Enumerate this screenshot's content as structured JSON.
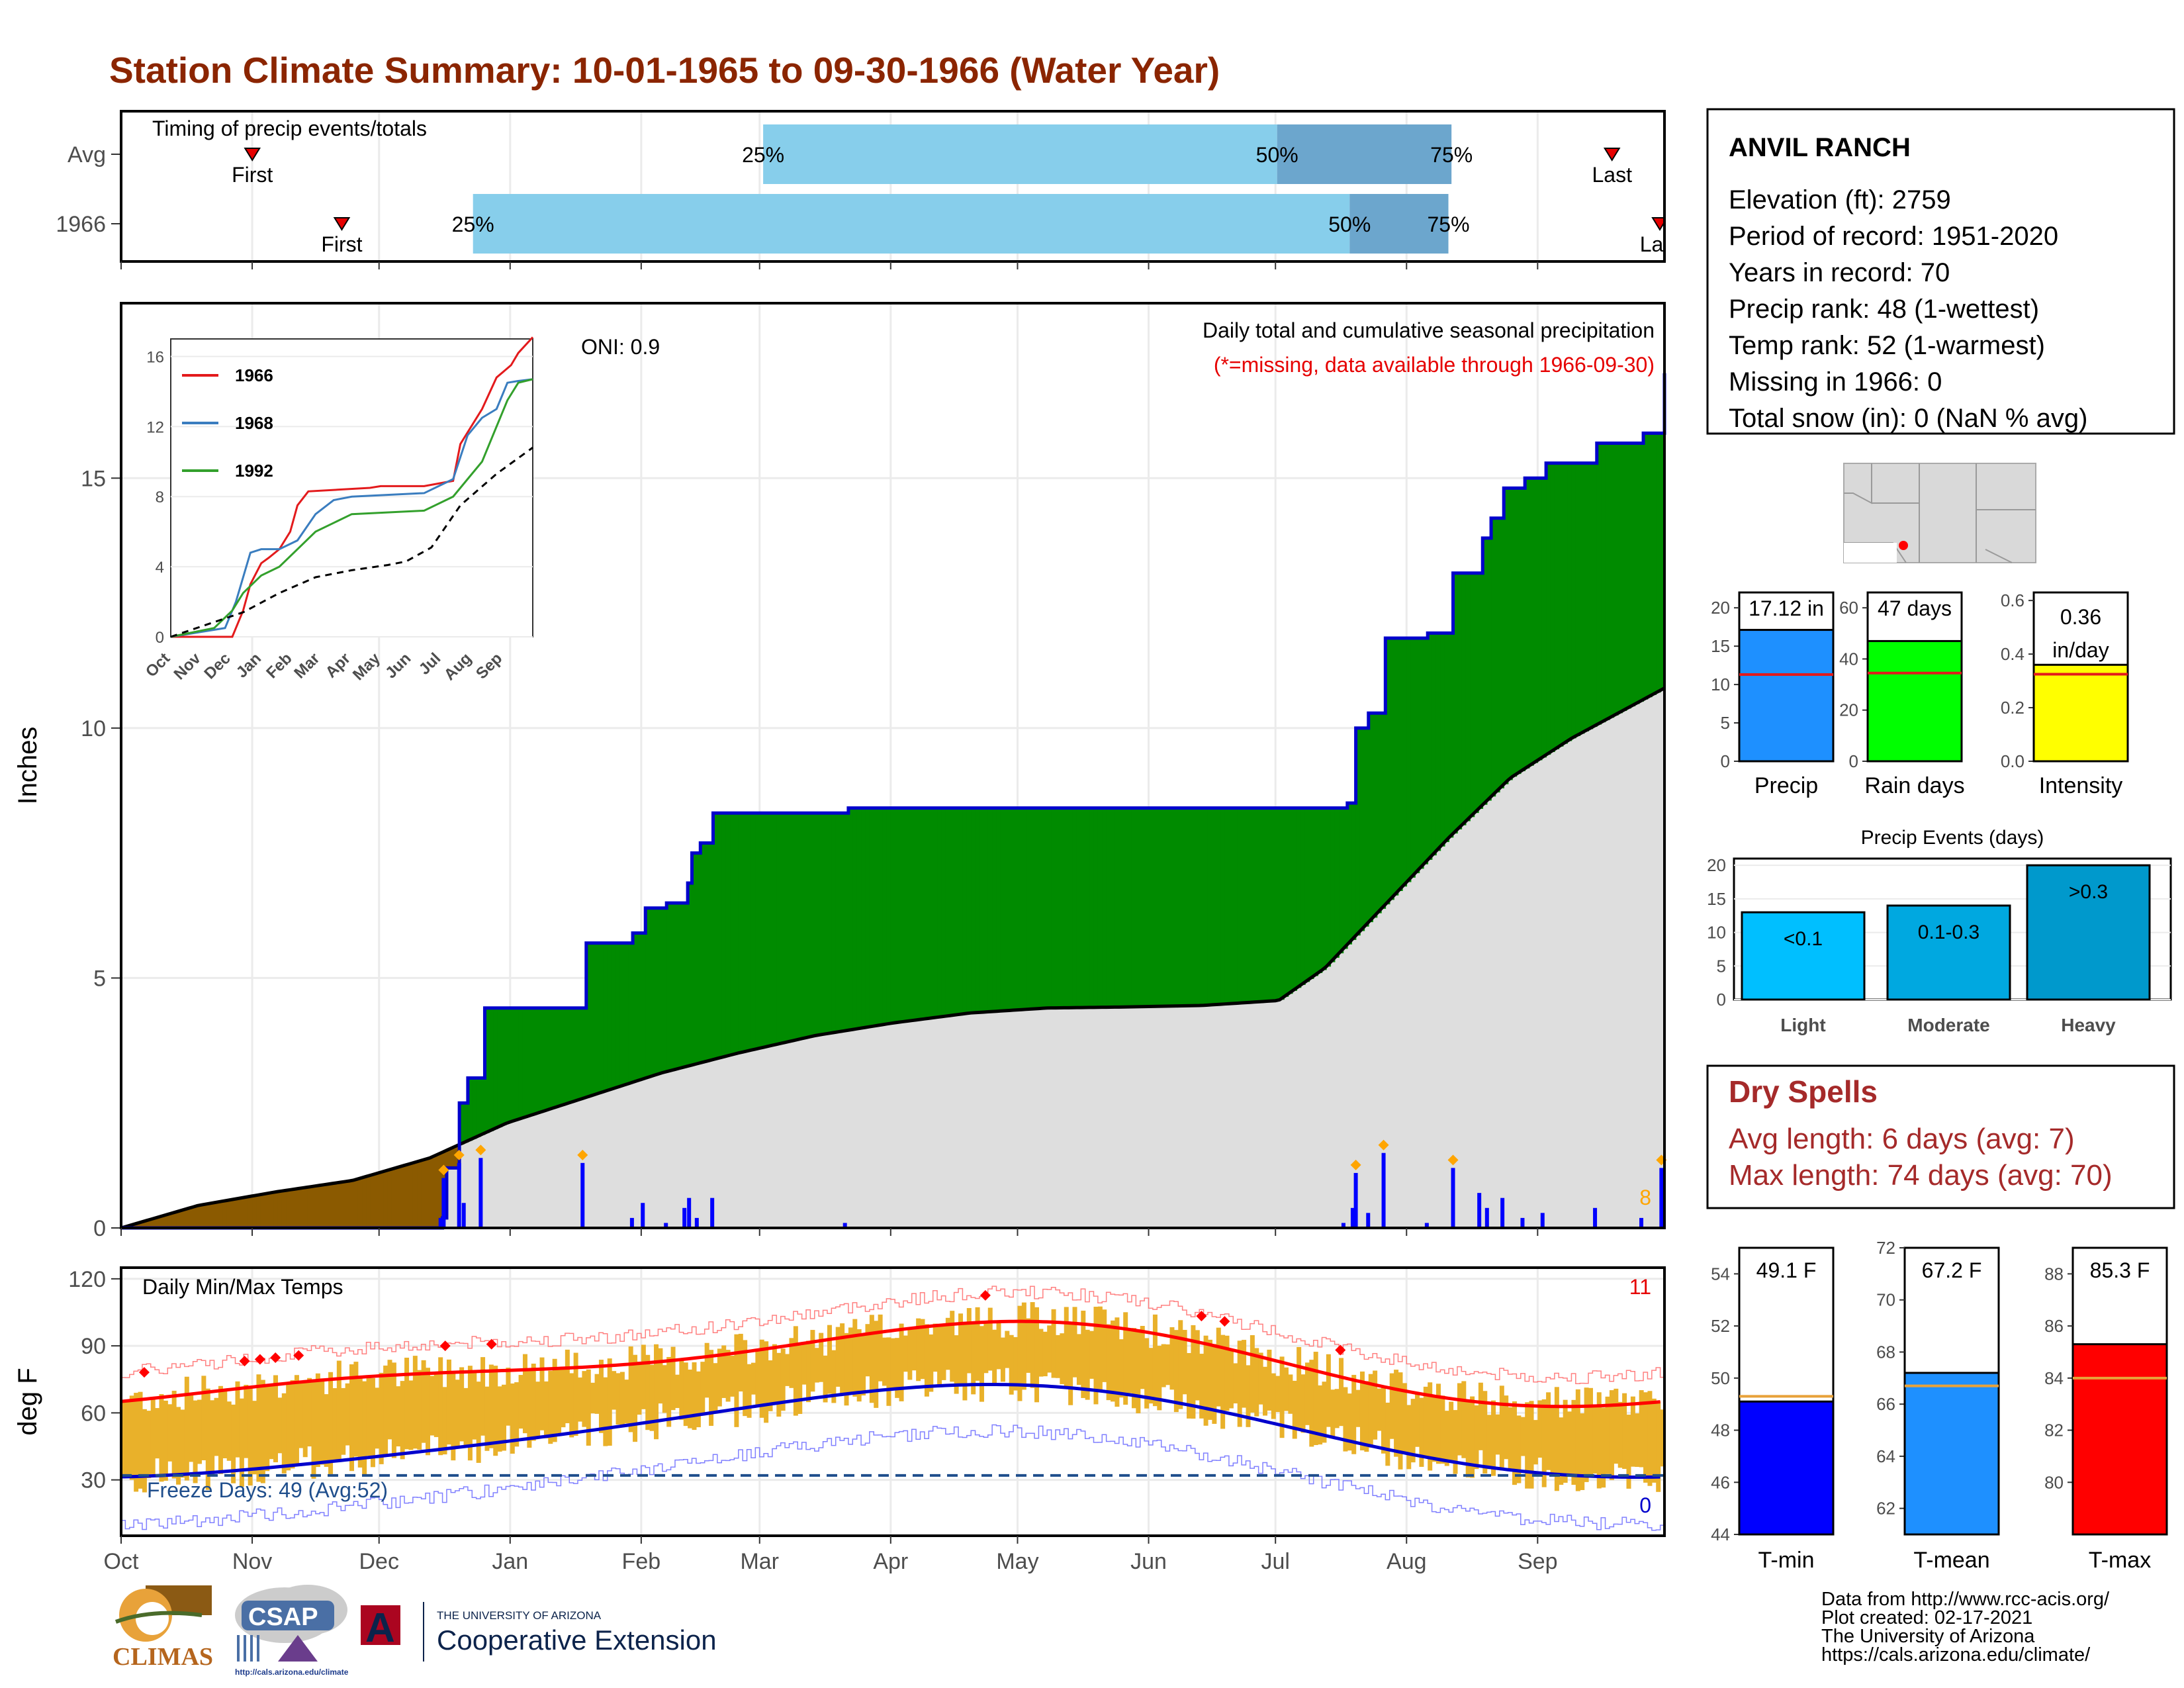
{
  "title": "Station Climate Summary: 10-01-1965 to 09-30-1966 (Water Year)",
  "station": {
    "name": "ANVIL RANCH",
    "lines": [
      "Elevation (ft): 2759",
      "Period of record: 1951-2020",
      "Years in record: 70",
      "Precip rank: 48 (1-wettest)",
      "Temp rank: 52 (1-warmest)",
      "Missing in 1966: 0",
      "Total snow (in): 0 (NaN % avg)"
    ]
  },
  "months": [
    "Oct",
    "Nov",
    "Dec",
    "Jan",
    "Feb",
    "Mar",
    "Apr",
    "May",
    "Jun",
    "Jul",
    "Aug",
    "Sep"
  ],
  "timing": {
    "title": "Timing of precip events/totals",
    "rows": [
      {
        "label": "Avg",
        "first_label": "First",
        "last_label": "Last",
        "first": 0.085,
        "p25": 0.416,
        "p50": 0.749,
        "p75": 0.862,
        "last": 0.966,
        "p25_label": "25%",
        "p50_label": "50%",
        "p75_label": "75%"
      },
      {
        "label": "1966",
        "first_label": "First",
        "last_label": "Last",
        "first": 0.143,
        "p25": 0.228,
        "p50": 0.796,
        "p75": 0.86,
        "last": 0.997,
        "p25_label": "25%",
        "p50_label": "50%",
        "p75_label": "75%"
      }
    ]
  },
  "precip_panel": {
    "ylabel": "Inches",
    "ylim": [
      0,
      18.5
    ],
    "yticks": [
      0,
      5,
      10,
      15
    ],
    "oni": "ONI: 0.9",
    "note": "Daily total and cumulative seasonal precipitation",
    "missing_note": "(*=missing, data available through 1966-09-30)",
    "extreme_count": "8",
    "inset": {
      "yticks": [
        0,
        4,
        8,
        12,
        16
      ],
      "xticks": [
        "Oct",
        "Nov",
        "Dec",
        "Jan",
        "Feb",
        "Mar",
        "Apr",
        "May",
        "Jun",
        "Jul",
        "Aug",
        "Sep"
      ],
      "legend": [
        "1966",
        "1968",
        "1992"
      ],
      "colors": [
        "#e31a1c",
        "#3a7dbf",
        "#33a02c"
      ]
    }
  },
  "temp_panel": {
    "ylabel": "deg F",
    "title": "Daily Min/Max Temps",
    "yticks": [
      30,
      60,
      90,
      120
    ],
    "freeze_label": "Freeze Days: 49 (Avg:52)",
    "hot_count": "11",
    "cold_count": "0"
  },
  "summary_bars": [
    {
      "label": "Precip",
      "value_label": "17.12 in",
      "value": 17.12,
      "avg": 11.3,
      "ymax": 22,
      "yticks": [
        0,
        5,
        10,
        15,
        20
      ],
      "color": "#1e90ff"
    },
    {
      "label": "Rain days",
      "value_label": "47 days",
      "value": 47,
      "avg": 34.5,
      "ymax": 66,
      "yticks": [
        0,
        20,
        40,
        60
      ],
      "color": "#00ff00"
    },
    {
      "label": "Intensity",
      "value_label": "0.36 in/day",
      "value": 0.36,
      "avg": 0.325,
      "ymax": 0.63,
      "yticks": [
        "0.0",
        "0.2",
        "0.4",
        "0.6"
      ],
      "color": "#ffff00"
    }
  ],
  "events": {
    "title": "Precip Events (days)",
    "yticks": [
      0,
      5,
      10,
      15,
      20
    ],
    "bars": [
      {
        "label": "Light",
        "inner": "<0.1",
        "value": 13,
        "color": "#00bfff"
      },
      {
        "label": "Moderate",
        "inner": "0.1-0.3",
        "value": 14,
        "color": "#00a8e0"
      },
      {
        "label": "Heavy",
        "inner": ">0.3",
        "value": 20,
        "color": "#0099cc"
      }
    ]
  },
  "dry_spells": {
    "title": "Dry Spells",
    "avg": "Avg length: 6 days (avg: 7)",
    "max": "Max length: 74 days (avg: 70)"
  },
  "temp_bars": [
    {
      "label": "T-min",
      "value_label": "49.1 F",
      "value": 49.1,
      "avg": 49.3,
      "ymin": 44,
      "ymax": 55,
      "yticks": [
        44,
        46,
        48,
        50,
        52,
        54
      ],
      "color": "#0000ff"
    },
    {
      "label": "T-mean",
      "value_label": "67.2 F",
      "value": 67.2,
      "avg": 66.7,
      "ymin": 61,
      "ymax": 72,
      "yticks": [
        62,
        64,
        66,
        68,
        70,
        72
      ],
      "color": "#1e90ff"
    },
    {
      "label": "T-max",
      "value_label": "85.3 F",
      "value": 85.3,
      "avg": 84,
      "ymin": 78,
      "ymax": 89,
      "yticks": [
        80,
        82,
        84,
        86,
        88
      ],
      "color": "#ff0000"
    }
  ],
  "credits": [
    "Data from http://www.rcc-acis.org/",
    "Plot created: 02-17-2021",
    "The University of Arizona",
    "https://cals.arizona.edu/climate/"
  ],
  "logos": {
    "climas": "CLIMAS",
    "csap": "CSAP",
    "csap_url": "http://cals.arizona.edu/climate",
    "ua_top": "THE UNIVERSITY OF ARIZONA",
    "ua_name": "Cooperative Extension",
    "ua_mark": "A"
  },
  "chart_data": [
    {
      "type": "area",
      "title": "Daily total and cumulative seasonal precipitation",
      "ylabel": "Inches",
      "ylim": [
        0,
        18.5
      ],
      "series": [
        {
          "name": "1966",
          "x_fraction": [
            0,
            0.148,
            0.207,
            0.209,
            0.219,
            0.222,
            0.233,
            0.298,
            0.299,
            0.331,
            0.338,
            0.353,
            0.365,
            0.368,
            0.373,
            0.383,
            0.459,
            0.469,
            0.534,
            0.62,
            0.792,
            0.798,
            0.8,
            0.808,
            0.818,
            0.828,
            0.846,
            0.863,
            0.88,
            0.885,
            0.895,
            0.908,
            0.921,
            0.944,
            0.955,
            0.985,
            0.998,
            1.0
          ],
          "values": [
            0,
            0,
            0.2,
            1.2,
            2.5,
            3.0,
            4.4,
            4.4,
            5.7,
            5.9,
            6.4,
            6.5,
            6.9,
            7.5,
            7.7,
            8.3,
            8.3,
            8.4,
            8.4,
            8.4,
            8.5,
            8.9,
            10.0,
            10.3,
            11.8,
            11.8,
            11.9,
            13.1,
            13.8,
            14.2,
            14.8,
            15.0,
            15.3,
            15.3,
            15.7,
            15.9,
            17.1,
            17.1
          ]
        },
        {
          "name": "Avg",
          "x_fraction": [
            0,
            0.05,
            0.1,
            0.15,
            0.2,
            0.25,
            0.3,
            0.35,
            0.4,
            0.45,
            0.5,
            0.55,
            0.6,
            0.65,
            0.7,
            0.75,
            0.78,
            0.82,
            0.86,
            0.9,
            0.94,
            0.97,
            1.0
          ],
          "values": [
            0,
            0.45,
            0.72,
            0.95,
            1.4,
            2.1,
            2.6,
            3.1,
            3.5,
            3.85,
            4.1,
            4.3,
            4.4,
            4.42,
            4.45,
            4.55,
            5.2,
            6.5,
            7.8,
            9.0,
            9.8,
            10.3,
            10.8
          ]
        }
      ]
    },
    {
      "type": "bar",
      "title": "Precip Events (days)",
      "categories": [
        "Light",
        "Moderate",
        "Heavy"
      ],
      "values": [
        13,
        14,
        20
      ]
    },
    {
      "type": "bar",
      "categories": [
        "Precip",
        "Rain days",
        "Intensity"
      ],
      "values": [
        17.12,
        47,
        0.36
      ]
    },
    {
      "type": "bar",
      "categories": [
        "T-min",
        "T-mean",
        "T-max"
      ],
      "values": [
        49.1,
        67.2,
        85.3
      ]
    }
  ]
}
